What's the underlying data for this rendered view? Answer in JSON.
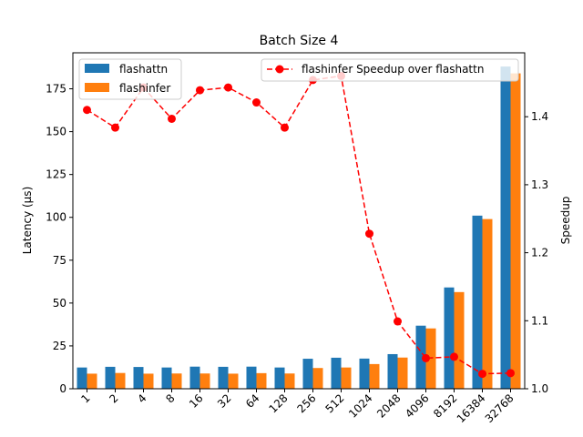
{
  "chart_data": {
    "type": "bar",
    "title": "Batch Size 4",
    "xlabel": "",
    "ylabel": "Latency (µs)",
    "y2label": "Speedup",
    "categories": [
      "1",
      "2",
      "4",
      "8",
      "16",
      "32",
      "64",
      "128",
      "256",
      "512",
      "1024",
      "2048",
      "4096",
      "8192",
      "16384",
      "32768"
    ],
    "ylim": [
      0,
      196
    ],
    "yticks": [
      0,
      25,
      50,
      75,
      100,
      125,
      150,
      175
    ],
    "y2lim": [
      1.0,
      1.494
    ],
    "y2ticks": [
      1.0,
      1.1,
      1.2,
      1.3,
      1.4
    ],
    "y2ticklabels": [
      "1.0",
      "1.1",
      "1.2",
      "1.3",
      "1.4"
    ],
    "bar_series": [
      {
        "name": "flashattn",
        "color": "#1f77b4",
        "values": [
          12.4,
          12.8,
          12.7,
          12.4,
          12.9,
          12.8,
          12.9,
          12.4,
          17.5,
          18.1,
          17.6,
          20.2,
          36.8,
          59.1,
          101.0,
          188.0
        ]
      },
      {
        "name": "flashinfer",
        "color": "#ff7f0e",
        "values": [
          8.8,
          9.2,
          8.8,
          8.9,
          8.9,
          8.8,
          9.1,
          8.9,
          12.1,
          12.4,
          14.4,
          18.2,
          35.2,
          56.4,
          99.0,
          184.0
        ]
      }
    ],
    "line_series": [
      {
        "name": "flashinfer Speedup over flashattn",
        "color": "#ff0000",
        "style": "dashed",
        "marker": "circle",
        "values": [
          1.41,
          1.384,
          1.443,
          1.397,
          1.439,
          1.443,
          1.421,
          1.384,
          1.454,
          1.46,
          1.228,
          1.099,
          1.045,
          1.047,
          1.022,
          1.023
        ]
      }
    ],
    "legend_left_placement": "top-left",
    "legend_right_placement": "top-right",
    "grid": false
  }
}
